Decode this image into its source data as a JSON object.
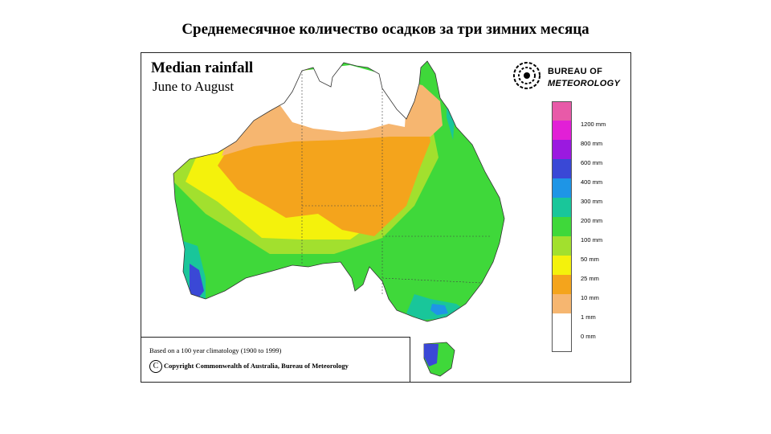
{
  "slide": {
    "title": "Среднемесячное количество осадков за три зимних месяца"
  },
  "map": {
    "title": "Median rainfall",
    "subtitle": "June to August",
    "agency_line1": "BUREAU OF",
    "agency_line2": "METEOROLOGY",
    "emblem_icon": "bom-spiral-logo-icon",
    "footer_note": "Based on a 100  year climatology (1900 to 1999)",
    "copyright_symbol": "C",
    "footer_copyright": "Copyright Commonwealth of Australia, Bureau of Meteorology"
  },
  "legend": [
    {
      "label": "",
      "color": "#e85aa8"
    },
    {
      "label": "1200 mm",
      "color": "#e21fd6"
    },
    {
      "label": "800 mm",
      "color": "#9b19e0"
    },
    {
      "label": "600 mm",
      "color": "#3a48d6"
    },
    {
      "label": "400 mm",
      "color": "#1e95e6"
    },
    {
      "label": "300 mm",
      "color": "#19c69a"
    },
    {
      "label": "200 mm",
      "color": "#3fd83a"
    },
    {
      "label": "100 mm",
      "color": "#a2e02e"
    },
    {
      "label": "50 mm",
      "color": "#f4f20c"
    },
    {
      "label": "25 mm",
      "color": "#f4a41c"
    },
    {
      "label": "10 mm",
      "color": "#f6b670"
    },
    {
      "label": "1 mm",
      "color": "#ffffff"
    },
    {
      "label": "0 mm",
      "color": ""
    }
  ]
}
